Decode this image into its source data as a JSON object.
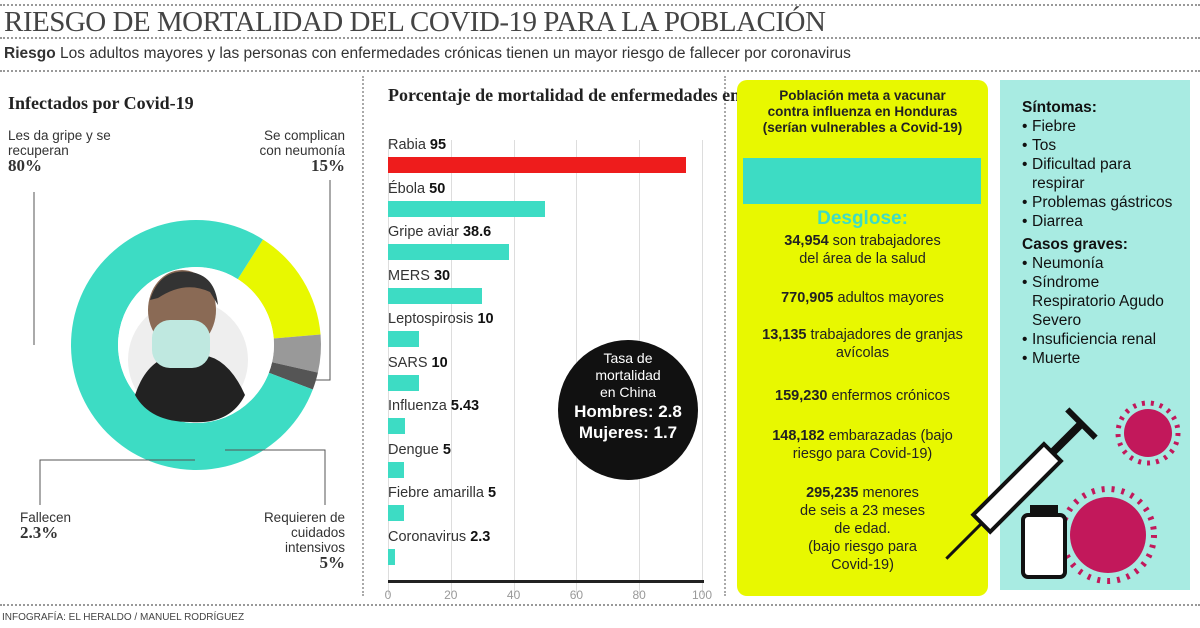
{
  "title": "RIESGO DE MORTALIDAD DEL COVID-19 PARA LA POBLACIÓN",
  "subtitle": {
    "bold": "Riesgo",
    "text": " Los adultos mayores y las personas con enfermedades crónicas tienen un mayor riesgo de fallecer por coronavirus"
  },
  "infected": {
    "heading": "Infectados por Covid-19",
    "labels": [
      {
        "text": "Les da gripe y se recuperan",
        "pct": "80%"
      },
      {
        "text": "Se complican con neumonía",
        "pct": "15%"
      },
      {
        "text": "Fallecen",
        "pct": "2.3%"
      },
      {
        "text": "Requieren de cuidados intensivos",
        "pct": "5%"
      }
    ],
    "colors": {
      "recover": "#3ddcc4",
      "pneumonia": "#e8f800",
      "icu": "#999999",
      "die": "#555555"
    }
  },
  "chart_data": [
    {
      "type": "pie",
      "title": "Infectados por Covid-19",
      "categories": [
        "Les da gripe y se recuperan",
        "Se complican con neumonía",
        "Requieren de cuidados intensivos",
        "Fallecen"
      ],
      "values": [
        80,
        15,
        5,
        2.3
      ]
    },
    {
      "type": "bar",
      "orientation": "horizontal",
      "title": "Porcentaje de mortalidad de enfermedades en el mundo",
      "categories": [
        "Rabia",
        "Ébola",
        "Gripe aviar",
        "MERS",
        "Leptospirosis",
        "SARS",
        "Influenza",
        "Dengue",
        "Fiebre amarilla",
        "Coronavirus"
      ],
      "values": [
        95,
        50,
        38.6,
        30,
        10,
        10,
        5.43,
        5,
        5,
        2.3
      ],
      "value_labels": [
        "95",
        "50",
        "38.6",
        "30",
        "10",
        "10",
        "5.43",
        "5",
        "5",
        "2.3"
      ],
      "xlim": [
        0,
        100
      ],
      "xticks": [
        "0",
        "20",
        "40",
        "60",
        "80",
        "100"
      ],
      "grid": true,
      "colors": {
        "highlight": "#ee1c1c",
        "default": "#3ddcc4"
      }
    }
  ],
  "china": {
    "line1": "Tasa de",
    "line2": "mortalidad",
    "line3": "en China",
    "men": "Hombres: 2.8",
    "women": "Mujeres: 1.7"
  },
  "vaccine": {
    "heading": [
      "Población meta a vacunar",
      "contra influenza en Honduras",
      "(serían vulnerables a Covid-19)"
    ],
    "breakdown_title": "Desglose:",
    "items": [
      {
        "num": "34,954",
        "text": " son trabajadores",
        "text2": "del área de la salud"
      },
      {
        "num": "770,905",
        "text": " adultos mayores",
        "text2": ""
      },
      {
        "num": "13,135",
        "text": " trabajadores de granjas",
        "text2": "avícolas"
      },
      {
        "num": "159,230",
        "text": " enfermos crónicos",
        "text2": ""
      },
      {
        "num": "148,182",
        "text": " embarazadas (bajo",
        "text2": "riesgo para Covid-19)"
      },
      {
        "num": "295,235",
        "text": " menores",
        "text2": "de seis a 23 meses",
        "text3": "de edad.",
        "text4": "(bajo riesgo para",
        "text5": "Covid-19)"
      }
    ]
  },
  "symptoms": {
    "heading": "Síntomas:",
    "items": [
      "Fiebre",
      "Tos",
      "Dificultad para respirar",
      "Problemas gástricos",
      "Diarrea"
    ],
    "severe_heading": "Casos graves:",
    "severe": [
      "Neumonía",
      "Síndrome Respiratorio Agudo Severo",
      "Insuficiencia renal",
      "Muerte"
    ]
  },
  "credit": "INFOGRAFÍA: EL HERALDO / MANUEL RODRÍGUEZ"
}
